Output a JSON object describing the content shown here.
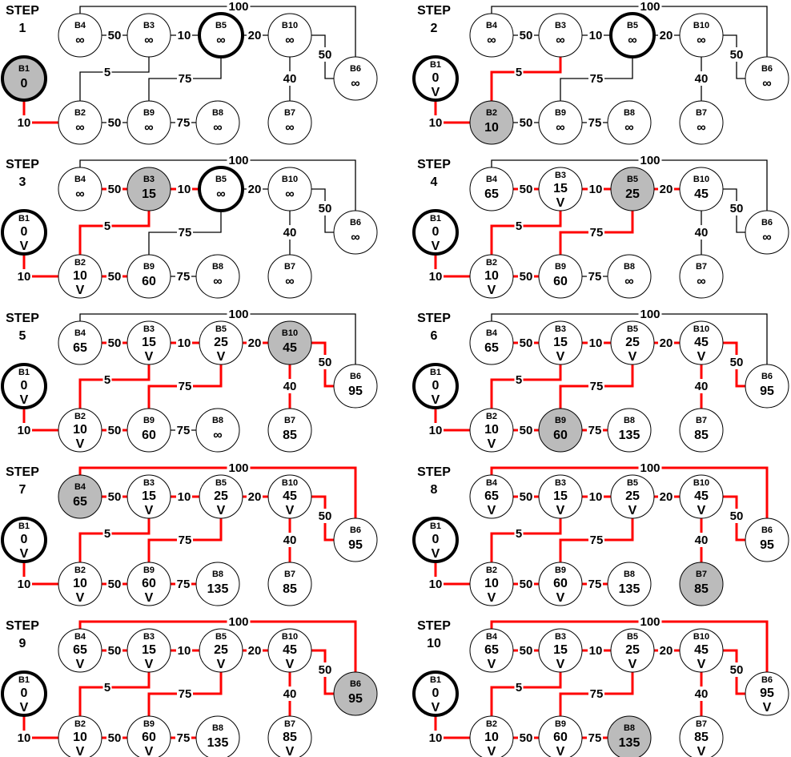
{
  "colors": {
    "active": "#ff0000",
    "inactive": "#000000",
    "current_fill": "#bbbbbb",
    "node_fill": "#ffffff"
  },
  "step_word": "STEP",
  "nodes": [
    "B1",
    "B2",
    "B3",
    "B4",
    "B5",
    "B6",
    "B7",
    "B8",
    "B9",
    "B10"
  ],
  "edges": [
    {
      "id": "b1b2",
      "a": "B1",
      "b": "B2",
      "w": "10"
    },
    {
      "id": "b2b3",
      "a": "B2",
      "b": "B3",
      "w": "5"
    },
    {
      "id": "b2b9",
      "a": "B2",
      "b": "B9",
      "w": "50"
    },
    {
      "id": "b4b3",
      "a": "B4",
      "b": "B3",
      "w": "50"
    },
    {
      "id": "b3b5",
      "a": "B3",
      "b": "B5",
      "w": "10"
    },
    {
      "id": "b5b9",
      "a": "B5",
      "b": "B9",
      "w": "75"
    },
    {
      "id": "b9b8",
      "a": "B9",
      "b": "B8",
      "w": "75"
    },
    {
      "id": "b5b10",
      "a": "B5",
      "b": "B10",
      "w": "20"
    },
    {
      "id": "b10b6",
      "a": "B10",
      "b": "B6",
      "w": "50"
    },
    {
      "id": "b10b7",
      "a": "B10",
      "b": "B7",
      "w": "40"
    },
    {
      "id": "b4b6",
      "a": "B4",
      "b": "B6",
      "w": "100"
    }
  ],
  "steps": [
    {
      "label": "1",
      "current": "B1",
      "dist": {
        "B1": "0",
        "B2": "∞",
        "B3": "∞",
        "B4": "∞",
        "B5": "∞",
        "B6": "∞",
        "B7": "∞",
        "B8": "∞",
        "B9": "∞",
        "B10": "∞"
      },
      "visited": [],
      "bold": [
        "B1",
        "B5"
      ],
      "red": [
        "b1b2"
      ]
    },
    {
      "label": "2",
      "current": "B2",
      "dist": {
        "B1": "0",
        "B2": "10",
        "B3": "∞",
        "B4": "∞",
        "B5": "∞",
        "B6": "∞",
        "B7": "∞",
        "B8": "∞",
        "B9": "∞",
        "B10": "∞"
      },
      "visited": [
        "B1"
      ],
      "bold": [
        "B1",
        "B5"
      ],
      "red": [
        "b1b2",
        "b2b3"
      ]
    },
    {
      "label": "3",
      "current": "B3",
      "dist": {
        "B1": "0",
        "B2": "10",
        "B3": "15",
        "B4": "∞",
        "B5": "∞",
        "B6": "∞",
        "B7": "∞",
        "B8": "∞",
        "B9": "60",
        "B10": "∞"
      },
      "visited": [
        "B1",
        "B2"
      ],
      "bold": [
        "B1",
        "B5"
      ],
      "red": [
        "b1b2",
        "b2b3",
        "b2b9",
        "b4b3",
        "b3b5"
      ]
    },
    {
      "label": "4",
      "current": "B5",
      "dist": {
        "B1": "0",
        "B2": "10",
        "B3": "15",
        "B4": "65",
        "B5": "25",
        "B6": "∞",
        "B7": "∞",
        "B8": "∞",
        "B9": "60",
        "B10": "45"
      },
      "visited": [
        "B1",
        "B2",
        "B3"
      ],
      "bold": [
        "B1"
      ],
      "red": [
        "b1b2",
        "b2b3",
        "b2b9",
        "b4b3",
        "b3b5",
        "b5b9",
        "b5b10"
      ]
    },
    {
      "label": "5",
      "current": "B10",
      "dist": {
        "B1": "0",
        "B2": "10",
        "B3": "15",
        "B4": "65",
        "B5": "25",
        "B6": "95",
        "B7": "85",
        "B8": "∞",
        "B9": "60",
        "B10": "45"
      },
      "visited": [
        "B1",
        "B2",
        "B3",
        "B5"
      ],
      "bold": [
        "B1"
      ],
      "red": [
        "b1b2",
        "b2b3",
        "b2b9",
        "b4b3",
        "b3b5",
        "b5b9",
        "b5b10",
        "b10b6",
        "b10b7"
      ]
    },
    {
      "label": "6",
      "current": "B9",
      "dist": {
        "B1": "0",
        "B2": "10",
        "B3": "15",
        "B4": "65",
        "B5": "25",
        "B6": "95",
        "B7": "85",
        "B8": "135",
        "B9": "60",
        "B10": "45"
      },
      "visited": [
        "B1",
        "B2",
        "B3",
        "B5",
        "B10"
      ],
      "bold": [
        "B1"
      ],
      "red": [
        "b1b2",
        "b2b3",
        "b2b9",
        "b4b3",
        "b3b5",
        "b5b9",
        "b5b10",
        "b10b6",
        "b10b7",
        "b9b8"
      ]
    },
    {
      "label": "7",
      "current": "B4",
      "dist": {
        "B1": "0",
        "B2": "10",
        "B3": "15",
        "B4": "65",
        "B5": "25",
        "B6": "95",
        "B7": "85",
        "B8": "135",
        "B9": "60",
        "B10": "45"
      },
      "visited": [
        "B1",
        "B2",
        "B3",
        "B5",
        "B9",
        "B10"
      ],
      "bold": [
        "B1"
      ],
      "red": [
        "b1b2",
        "b2b3",
        "b2b9",
        "b4b3",
        "b3b5",
        "b5b9",
        "b5b10",
        "b10b6",
        "b10b7",
        "b9b8",
        "b4b6"
      ]
    },
    {
      "label": "8",
      "current": "B7",
      "dist": {
        "B1": "0",
        "B2": "10",
        "B3": "15",
        "B4": "65",
        "B5": "25",
        "B6": "95",
        "B7": "85",
        "B8": "135",
        "B9": "60",
        "B10": "45"
      },
      "visited": [
        "B1",
        "B2",
        "B3",
        "B4",
        "B5",
        "B9",
        "B10"
      ],
      "bold": [
        "B1"
      ],
      "red": [
        "b1b2",
        "b2b3",
        "b2b9",
        "b4b3",
        "b3b5",
        "b5b9",
        "b5b10",
        "b10b6",
        "b10b7",
        "b9b8",
        "b4b6"
      ]
    },
    {
      "label": "9",
      "current": "B6",
      "dist": {
        "B1": "0",
        "B2": "10",
        "B3": "15",
        "B4": "65",
        "B5": "25",
        "B6": "95",
        "B7": "85",
        "B8": "135",
        "B9": "60",
        "B10": "45"
      },
      "visited": [
        "B1",
        "B2",
        "B3",
        "B4",
        "B5",
        "B7",
        "B9",
        "B10"
      ],
      "bold": [
        "B1"
      ],
      "red": [
        "b1b2",
        "b2b3",
        "b2b9",
        "b4b3",
        "b3b5",
        "b5b9",
        "b5b10",
        "b10b6",
        "b10b7",
        "b9b8",
        "b4b6"
      ]
    },
    {
      "label": "10",
      "current": "B8",
      "dist": {
        "B1": "0",
        "B2": "10",
        "B3": "15",
        "B4": "65",
        "B5": "25",
        "B6": "95",
        "B7": "85",
        "B8": "135",
        "B9": "60",
        "B10": "45"
      },
      "visited": [
        "B1",
        "B2",
        "B3",
        "B4",
        "B5",
        "B6",
        "B7",
        "B9",
        "B10"
      ],
      "bold": [
        "B1"
      ],
      "red": [
        "b1b2",
        "b2b3",
        "b2b9",
        "b4b3",
        "b3b5",
        "b5b9",
        "b5b10",
        "b10b6",
        "b10b7",
        "b9b8",
        "b4b6"
      ]
    }
  ],
  "visited_mark": "V"
}
